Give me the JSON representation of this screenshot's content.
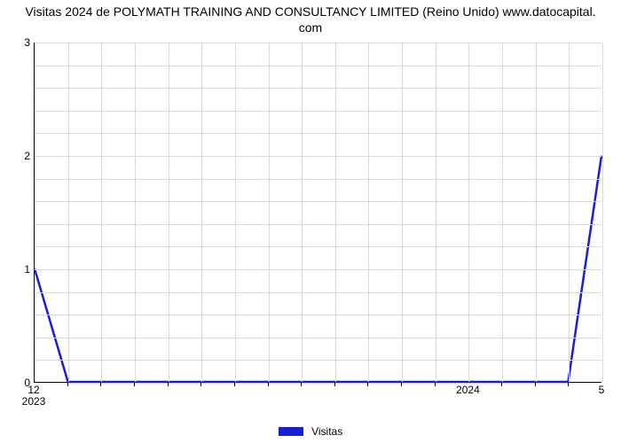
{
  "chart": {
    "type": "line",
    "title_line1": "Visitas 2024 de POLYMATH TRAINING AND CONSULTANCY LIMITED (Reino Unido) www.datocapital.",
    "title_line2": "com",
    "title_fontsize": 14,
    "title_color": "#000000",
    "background_color": "#ffffff",
    "plot_border_color": "#000000",
    "grid_color": "#d9d9d9",
    "xlim": [
      0,
      17
    ],
    "ylim": [
      0,
      3
    ],
    "ytick_values": [
      0,
      1,
      2,
      3
    ],
    "ytick_labels": [
      "0",
      "1",
      "2",
      "3"
    ],
    "x_major_ticks": [
      {
        "x": 0,
        "top": "12",
        "bottom": "2023"
      },
      {
        "x": 13,
        "top": "",
        "bottom": "2024"
      },
      {
        "x": 17,
        "top": "5",
        "bottom": ""
      }
    ],
    "x_minor_tick_step": 1,
    "series": {
      "label": "Visitas",
      "color": "#1620d2",
      "line_width": 2.5,
      "x": [
        0,
        1,
        2,
        3,
        4,
        5,
        6,
        7,
        8,
        9,
        10,
        11,
        12,
        13,
        14,
        15,
        16,
        17
      ],
      "y": [
        1,
        0,
        0,
        0,
        0,
        0,
        0,
        0,
        0,
        0,
        0,
        0,
        0,
        0,
        0,
        0,
        0,
        2
      ]
    },
    "legend_position": "bottom-center",
    "label_fontsize": 12
  }
}
